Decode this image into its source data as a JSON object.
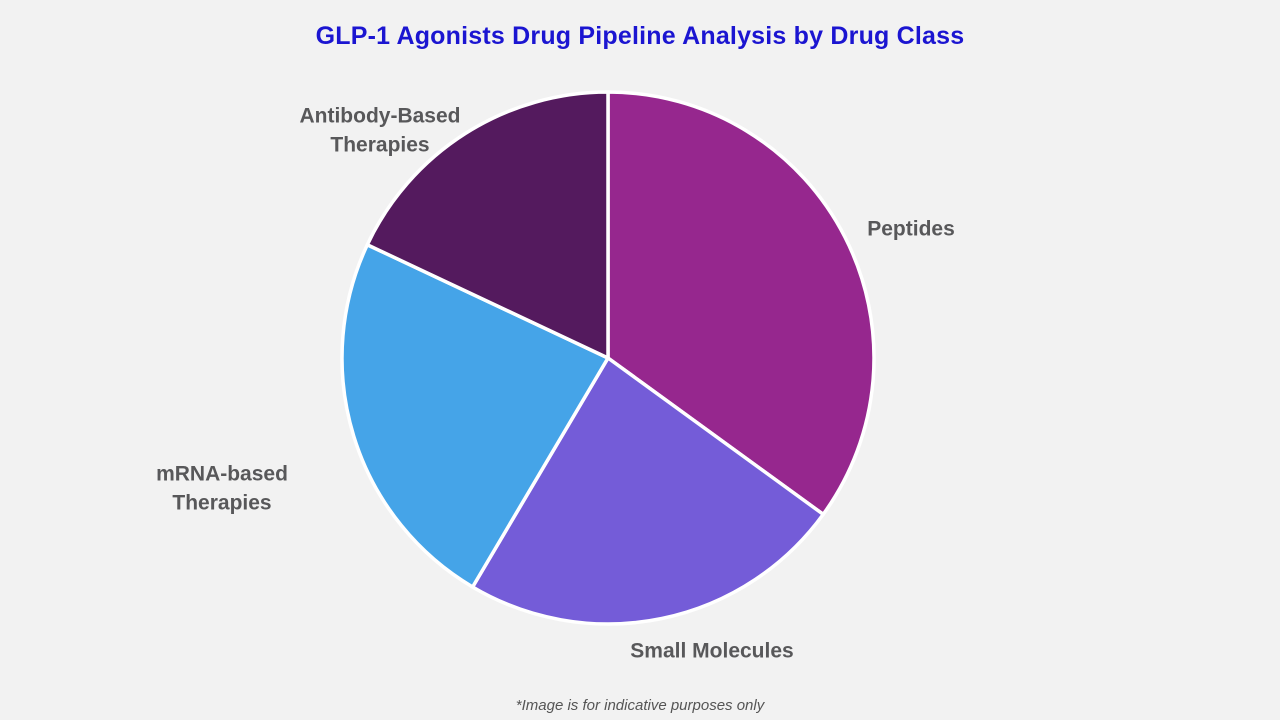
{
  "page": {
    "background_color": "#f2f2f2",
    "title": "GLP-1 Agonists Drug Pipeline Analysis by Drug Class",
    "title_color": "#1b15d1",
    "footnote": "*Image is for indicative purposes only"
  },
  "chart_data": {
    "type": "pie",
    "title": "GLP-1 Agonists Drug Pipeline Analysis by Drug Class",
    "categories": [
      "Peptides",
      "Small Molecules",
      "mRNA-based Therapies",
      "Antibody-Based Therapies"
    ],
    "values": [
      35,
      23.5,
      23.5,
      18
    ],
    "values_note": "percent share estimated from slice angles (no numeric labels shown)",
    "colors": [
      "#96278e",
      "#745cd8",
      "#45a4e8",
      "#541a5e"
    ],
    "start_angle_deg": 0,
    "direction": "clockwise",
    "slice_divider_color": "#ffffff",
    "legend_position": "none",
    "label_style": "outside category labels",
    "label_color": "#58585a",
    "annotations": [
      "*Image is for indicative purposes only"
    ]
  }
}
